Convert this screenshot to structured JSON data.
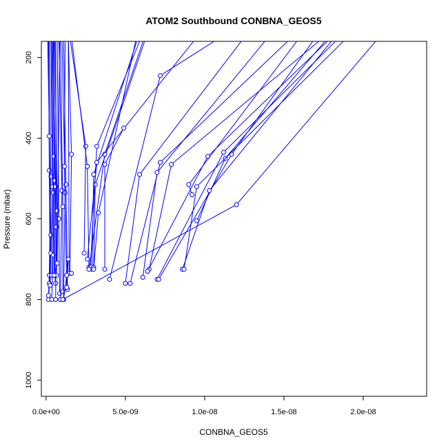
{
  "chart_data": {
    "type": "line",
    "title": "ATOM2 Southbound CONBNA_GEOS5",
    "xlabel": "CONBNA_GEOS5",
    "ylabel": "Pressure (mbar)",
    "xlim": [
      -3e-10,
      2.4e-08
    ],
    "ylim": [
      1040,
      160
    ],
    "y_reversed": true,
    "x_ticks": [
      0,
      5e-09,
      1e-08,
      1.5e-08,
      2e-08
    ],
    "x_tick_labels": [
      "0.0e+00",
      "5.0e-09",
      "1.0e-08",
      "1.5e-08",
      "2.0e-08"
    ],
    "y_ticks": [
      200,
      400,
      600,
      800,
      1000
    ],
    "y_tick_labels": [
      "200",
      "400",
      "600",
      "800",
      "1000"
    ],
    "grid": false,
    "line_color": "#0000ff",
    "series": [
      {
        "x": [
          1.5e-10,
          2e-10,
          2.5e-10,
          1.5e-10
        ],
        "y": [
          150,
          480,
          740,
          800
        ]
      },
      {
        "x": [
          2e-10,
          3e-10,
          2e-10,
          1.5e-10
        ],
        "y": [
          150,
          495,
          740,
          790
        ]
      },
      {
        "x": [
          1e-10,
          2e-10,
          3e-10,
          2e-10
        ],
        "y": [
          150,
          395,
          640,
          760
        ]
      },
      {
        "x": [
          3e-10,
          4e-10,
          3e-10,
          2.5e-10
        ],
        "y": [
          150,
          520,
          685,
          765
        ]
      },
      {
        "x": [
          3.5e-10,
          4.5e-10,
          3.5e-10
        ],
        "y": [
          150,
          535,
          740
        ]
      },
      {
        "x": [
          4e-10,
          5e-10,
          4.5e-10,
          3.5e-10
        ],
        "y": [
          150,
          445,
          690,
          800
        ]
      },
      {
        "x": [
          5e-10,
          5.5e-10,
          5e-10
        ],
        "y": [
          150,
          505,
          740
        ]
      },
      {
        "x": [
          4.5e-10,
          6e-10,
          5.5e-10,
          6e-10
        ],
        "y": [
          150,
          520,
          740,
          760
        ]
      },
      {
        "x": [
          6e-10,
          6.5e-10,
          6e-10
        ],
        "y": [
          150,
          620,
          800
        ]
      },
      {
        "x": [
          5.5e-10,
          7e-10,
          6.5e-10
        ],
        "y": [
          150,
          580,
          740
        ]
      },
      {
        "x": [
          7e-10,
          8e-10,
          8.5e-10
        ],
        "y": [
          150,
          600,
          785
        ]
      },
      {
        "x": [
          8e-10,
          1e-09,
          9e-10
        ],
        "y": [
          150,
          530,
          800
        ]
      },
      {
        "x": [
          9e-10,
          1.05e-09,
          1.05e-09
        ],
        "y": [
          150,
          570,
          780
        ]
      },
      {
        "x": [
          1e-09,
          1.2e-09,
          1.1e-09
        ],
        "y": [
          150,
          535,
          800
        ]
      },
      {
        "x": [
          1.1e-09,
          1.25e-09,
          1.35e-09
        ],
        "y": [
          150,
          515,
          775
        ]
      },
      {
        "x": [
          1.4e-09,
          1.6e-09,
          1.5e-09
        ],
        "y": [
          150,
          440,
          735
        ]
      },
      {
        "x": [
          1.4e-09,
          1.45e-09,
          1.6e-09
        ],
        "y": [
          150,
          735,
          735
        ]
      },
      {
        "x": [
          1.5e-09,
          2.5e-09,
          2.4e-09
        ],
        "y": [
          150,
          420,
          685
        ]
      },
      {
        "x": [
          1.6e-09,
          2.6e-09,
          2.7e-09
        ],
        "y": [
          150,
          470,
          720
        ]
      },
      {
        "x": [
          1.2e-09,
          1.15e-09,
          1.3e-09
        ],
        "y": [
          150,
          470,
          770
        ]
      },
      {
        "x": [
          8.5e-10,
          7e-10,
          5e-10
        ],
        "y": [
          150,
          710,
          740
        ]
      },
      {
        "x": [
          1.1e-09,
          1.3e-09,
          1.4e-09,
          1.3e-09
        ],
        "y": [
          800,
          740,
          700,
          770
        ]
      },
      {
        "x": [
          6e-09,
          3.2e-09,
          2.8e-09
        ],
        "y": [
          150,
          420,
          720
        ]
      },
      {
        "x": [
          5.8e-09,
          3e-09,
          2.9e-09
        ],
        "y": [
          150,
          490,
          725
        ]
      },
      {
        "x": [
          6.3e-09,
          3.1e-09,
          3e-09
        ],
        "y": [
          150,
          515,
          720
        ]
      },
      {
        "x": [
          5.7e-09,
          3.3e-09,
          3e-09
        ],
        "y": [
          150,
          585,
          725
        ]
      },
      {
        "x": [
          6.2e-09,
          3.7e-09,
          2.7e-09
        ],
        "y": [
          150,
          440,
          725
        ]
      },
      {
        "x": [
          9.5e-09,
          3.2e-09,
          2.6e-09
        ],
        "y": [
          150,
          460,
          700
        ]
      },
      {
        "x": [
          4.9e-09,
          3.7e-09,
          3.7e-09
        ],
        "y": [
          375,
          465,
          725
        ]
      },
      {
        "x": [
          1.1e-08,
          7.2e-09,
          4e-09
        ],
        "y": [
          150,
          245,
          750
        ]
      },
      {
        "x": [
          1.25e-08,
          5.9e-09,
          5e-09
        ],
        "y": [
          150,
          490,
          760
        ]
      },
      {
        "x": [
          1.55e-08,
          7.2e-09,
          5.3e-09
        ],
        "y": [
          150,
          460,
          760
        ]
      },
      {
        "x": [
          1.4e-08,
          7e-09,
          6.1e-09
        ],
        "y": [
          150,
          485,
          745
        ]
      },
      {
        "x": [
          1.75e-08,
          7.9e-09,
          6.5e-09
        ],
        "y": [
          150,
          465,
          725
        ]
      },
      {
        "x": [
          1.8e-08,
          1.02e-08,
          6.4e-09
        ],
        "y": [
          150,
          445,
          730
        ]
      },
      {
        "x": [
          1.85e-08,
          1.12e-08,
          7e-09
        ],
        "y": [
          150,
          435,
          750
        ]
      },
      {
        "x": [
          1.78e-08,
          1.13e-08,
          9.5e-09
        ],
        "y": [
          150,
          450,
          605
        ]
      },
      {
        "x": [
          1.7e-08,
          1.17e-08,
          7.1e-09
        ],
        "y": [
          150,
          440,
          750
        ]
      },
      {
        "x": [
          1.82e-08,
          1.03e-08,
          8.6e-09
        ],
        "y": [
          150,
          530,
          725
        ]
      },
      {
        "x": [
          1.9e-08,
          9.5e-09,
          8.7e-09
        ],
        "y": [
          150,
          520,
          725
        ]
      },
      {
        "x": [
          1.6e-08,
          9e-09,
          9.2e-09
        ],
        "y": [
          150,
          515,
          540
        ]
      },
      {
        "x": [
          2.1e-08,
          1.2e-08,
          1.05e-09
        ],
        "y": [
          150,
          565,
          800
        ]
      }
    ]
  }
}
